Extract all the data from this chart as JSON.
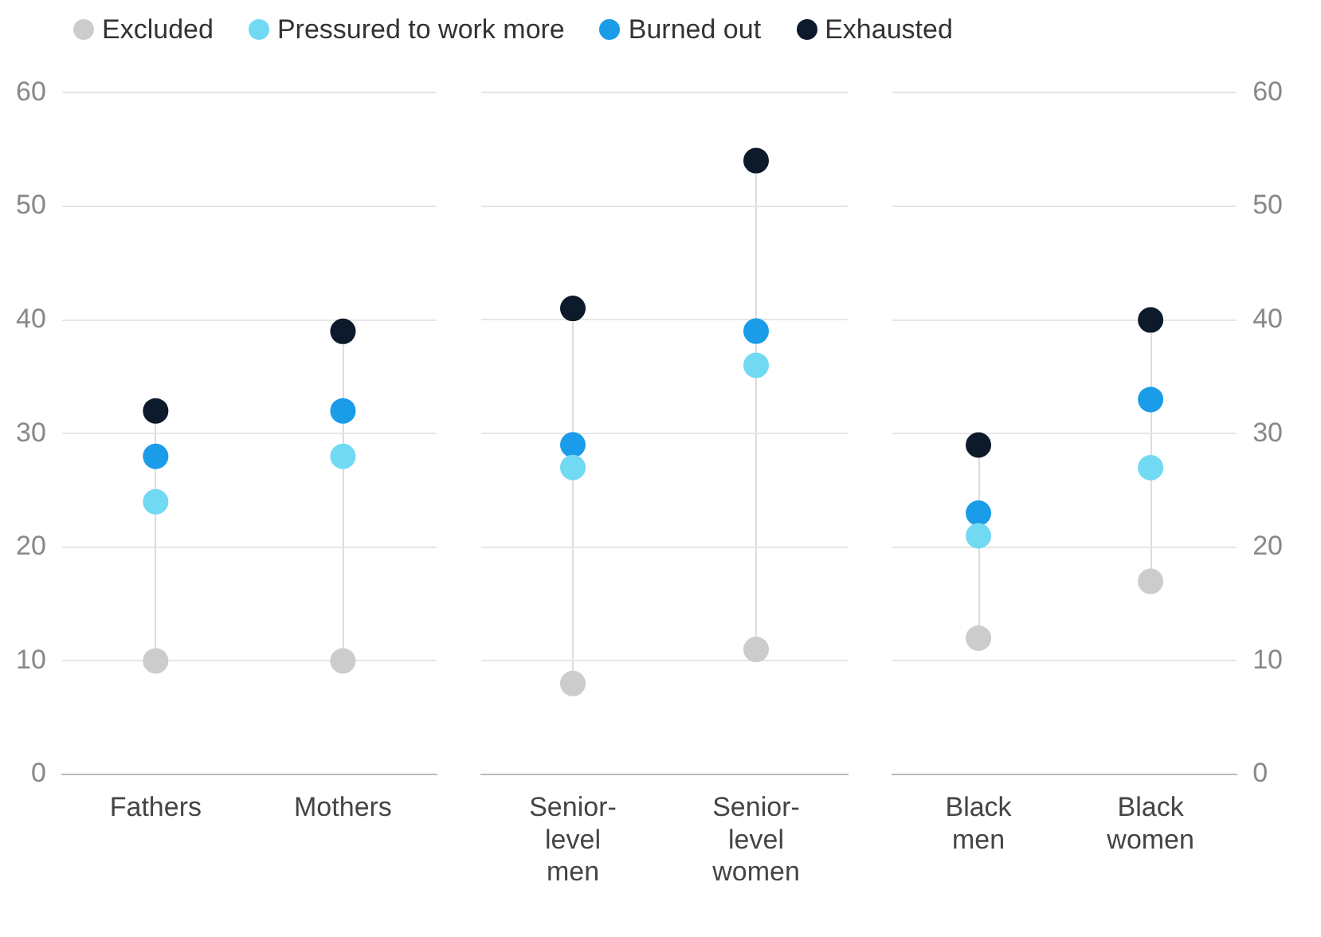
{
  "chart_data": [
    {
      "type": "scatter",
      "categories": [
        "Fathers",
        "Mothers"
      ],
      "ylim": [
        0,
        60
      ],
      "yticks": [
        0,
        10,
        20,
        30,
        40,
        50,
        60
      ],
      "grid": "y",
      "legend": "top",
      "marker": "circle",
      "series": [
        {
          "name": "Excluded",
          "color": "#cccccc",
          "values": [
            10,
            10
          ]
        },
        {
          "name": "Pressured to work more",
          "color": "#72d9f3",
          "values": [
            24,
            28
          ]
        },
        {
          "name": "Burned out",
          "color": "#1b9ce9",
          "values": [
            28,
            32
          ]
        },
        {
          "name": "Exhausted",
          "color": "#0c1a2b",
          "values": [
            32,
            39
          ]
        }
      ]
    },
    {
      "type": "scatter",
      "categories": [
        "Senior-level men",
        "Senior-level women"
      ],
      "ylim": [
        0,
        60
      ],
      "yticks": [
        0,
        10,
        20,
        30,
        40,
        50,
        60
      ],
      "grid": "y",
      "tick_labels": "x",
      "marker": "circle",
      "series": [
        {
          "color": "#cccccc",
          "values": [
            8,
            11
          ]
        },
        {
          "color": "#72d9f3",
          "values": [
            27,
            36
          ]
        },
        {
          "color": "#1b9ce9",
          "values": [
            29,
            39
          ]
        },
        {
          "color": "#0c1a2b",
          "values": [
            41,
            54
          ]
        }
      ]
    },
    {
      "type": "scatter",
      "categories": [
        "Black men",
        "Black women"
      ],
      "y2lim": [
        0,
        60
      ],
      "y2ticks": [
        0,
        10,
        20,
        30,
        40,
        50,
        60
      ],
      "grid": "y",
      "marker": "circle",
      "series": [
        {
          "axis": "y2",
          "color": "#cccccc",
          "values": [
            12,
            17
          ]
        },
        {
          "axis": "y2",
          "color": "#72d9f3",
          "values": [
            21,
            27
          ]
        },
        {
          "axis": "y2",
          "color": "#1b9ce9",
          "values": [
            23,
            33
          ]
        },
        {
          "axis": "y2",
          "color": "#0c1a2b",
          "values": [
            29,
            40
          ]
        }
      ]
    }
  ]
}
